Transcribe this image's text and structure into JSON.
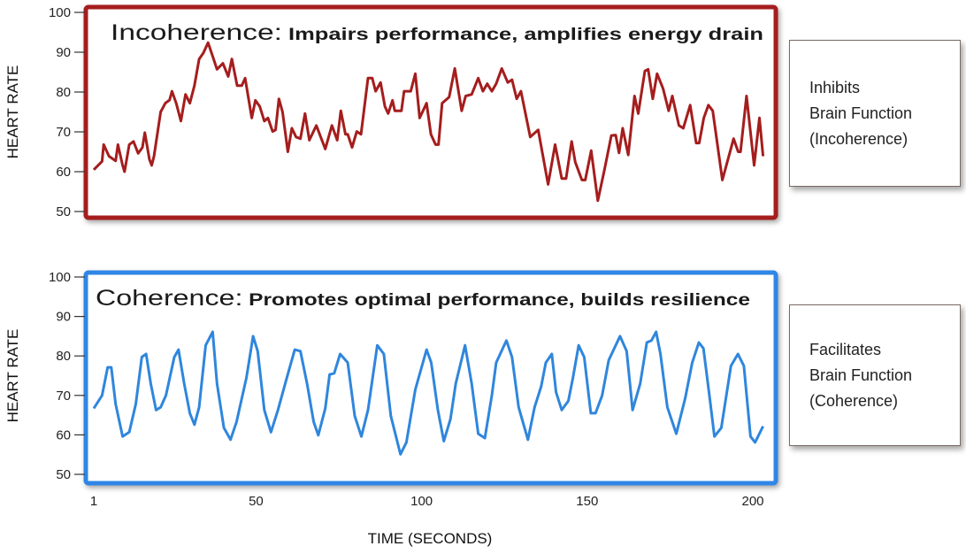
{
  "chart_data": [
    {
      "type": "line",
      "title_bold": "Incoherence:",
      "title_rest": " Impairs performance, amplifies energy drain",
      "ylabel": "HEART RATE",
      "xlabel": "",
      "ylim": [
        50,
        100
      ],
      "yticks": [
        100,
        90,
        80,
        70,
        60,
        50
      ],
      "xlim": [
        1,
        203
      ],
      "xticks": [],
      "grid": false,
      "color": "#a51d1d",
      "border_color": "#a51d1d",
      "annotation": [
        "Inhibits",
        "Brain Function",
        "(Incoherence)"
      ],
      "points": [
        [
          1,
          60.5
        ],
        [
          3.5,
          62.6
        ],
        [
          4,
          66.8
        ],
        [
          5.6,
          63.9
        ],
        [
          7.6,
          62.7
        ],
        [
          8.3,
          66.8
        ],
        [
          9.7,
          61.6
        ],
        [
          10.3,
          60
        ],
        [
          11.7,
          66.8
        ],
        [
          13,
          67.6
        ],
        [
          14.4,
          64.6
        ],
        [
          15.7,
          66.1
        ],
        [
          16.4,
          69.8
        ],
        [
          17.8,
          63.1
        ],
        [
          18.5,
          61.6
        ],
        [
          19.2,
          63.9
        ],
        [
          21.2,
          75
        ],
        [
          22.6,
          77.2
        ],
        [
          23.9,
          78
        ],
        [
          24.6,
          80.2
        ],
        [
          25.9,
          77.2
        ],
        [
          27.3,
          72.7
        ],
        [
          28.7,
          79.4
        ],
        [
          30,
          77.2
        ],
        [
          31.4,
          81.6
        ],
        [
          32.8,
          88.3
        ],
        [
          34.1,
          89.8
        ],
        [
          35.5,
          92.4
        ],
        [
          36.9,
          89
        ],
        [
          38.2,
          85.7
        ],
        [
          40,
          87.2
        ],
        [
          41.6,
          83.9
        ],
        [
          42.7,
          88.3
        ],
        [
          44.3,
          81.6
        ],
        [
          45.7,
          81.6
        ],
        [
          46.7,
          83.5
        ],
        [
          48.7,
          73.5
        ],
        [
          49.8,
          77.9
        ],
        [
          51.1,
          76.4
        ],
        [
          52.5,
          72.7
        ],
        [
          53.6,
          73.5
        ],
        [
          55,
          70.1
        ],
        [
          55.9,
          70.5
        ],
        [
          56.9,
          78.3
        ],
        [
          58,
          75
        ],
        [
          59.6,
          65
        ],
        [
          60.8,
          70.9
        ],
        [
          62.1,
          68.7
        ],
        [
          63.4,
          68.3
        ],
        [
          64.8,
          74.6
        ],
        [
          66.1,
          67.9
        ],
        [
          68.2,
          71.6
        ],
        [
          70.9,
          65.7
        ],
        [
          72.9,
          71.6
        ],
        [
          74.5,
          67.9
        ],
        [
          75.6,
          75.3
        ],
        [
          77,
          69.4
        ],
        [
          77.7,
          69.4
        ],
        [
          79,
          66.1
        ],
        [
          80.4,
          70.1
        ],
        [
          81.7,
          69.4
        ],
        [
          83.8,
          83.5
        ],
        [
          85.1,
          83.5
        ],
        [
          86.1,
          80.2
        ],
        [
          87.6,
          82.4
        ],
        [
          88.9,
          76.4
        ],
        [
          89.9,
          74.6
        ],
        [
          91.2,
          77.9
        ],
        [
          91.9,
          75.3
        ],
        [
          93.9,
          75.3
        ],
        [
          94.7,
          80.2
        ],
        [
          96.7,
          80.2
        ],
        [
          98.1,
          84.6
        ],
        [
          99.4,
          73.5
        ],
        [
          101.5,
          77.2
        ],
        [
          102.8,
          69.4
        ],
        [
          104.2,
          66.8
        ],
        [
          105.1,
          66.8
        ],
        [
          106.2,
          77.2
        ],
        [
          108.3,
          78.7
        ],
        [
          110,
          85.9
        ],
        [
          112.1,
          75.3
        ],
        [
          113.3,
          79
        ],
        [
          115.1,
          79.4
        ],
        [
          117.1,
          83.5
        ],
        [
          118.5,
          80.2
        ],
        [
          119.8,
          82.1
        ],
        [
          121.2,
          80.2
        ],
        [
          122.5,
          82.1
        ],
        [
          124.2,
          85.9
        ],
        [
          126,
          82.4
        ],
        [
          127.3,
          83.1
        ],
        [
          128.7,
          78.3
        ],
        [
          130,
          80.2
        ],
        [
          132.8,
          68.7
        ],
        [
          135.2,
          70.5
        ],
        [
          138.2,
          56.8
        ],
        [
          140.3,
          66.8
        ],
        [
          142.3,
          58.3
        ],
        [
          143.6,
          58.3
        ],
        [
          145.3,
          67.6
        ],
        [
          146.4,
          62.4
        ],
        [
          148.4,
          57.9
        ],
        [
          149.4,
          57.9
        ],
        [
          151.2,
          65.3
        ],
        [
          153.2,
          52.7
        ],
        [
          155.2,
          60.5
        ],
        [
          157.3,
          69.1
        ],
        [
          158.6,
          69.2
        ],
        [
          159.6,
          64.7
        ],
        [
          160.7,
          70.9
        ],
        [
          162.4,
          64.2
        ],
        [
          164.3,
          79
        ],
        [
          165.4,
          74.6
        ],
        [
          167.4,
          85.3
        ],
        [
          168.4,
          85.7
        ],
        [
          169.8,
          78.3
        ],
        [
          171.1,
          84.6
        ],
        [
          172.9,
          80.9
        ],
        [
          174.6,
          75.3
        ],
        [
          175.7,
          79
        ],
        [
          177.7,
          71.6
        ],
        [
          179,
          70.9
        ],
        [
          181.1,
          76.7
        ],
        [
          182.9,
          67.2
        ],
        [
          183.8,
          67.2
        ],
        [
          185.2,
          73.5
        ],
        [
          186.6,
          76.7
        ],
        [
          187.9,
          75.3
        ],
        [
          190.8,
          57.9
        ],
        [
          194.2,
          68.3
        ],
        [
          195.6,
          65
        ],
        [
          196.3,
          65
        ],
        [
          198.1,
          79
        ],
        [
          200.4,
          61.6
        ],
        [
          202,
          73.5
        ],
        [
          203.1,
          63.9
        ]
      ]
    },
    {
      "type": "line",
      "title_bold": "Coherence:",
      "title_rest": " Promotes optimal performance, builds resilience",
      "ylabel": "HEART RATE",
      "xlabel": "TIME (SECONDS)",
      "ylim": [
        50,
        100
      ],
      "yticks": [
        100,
        90,
        80,
        70,
        60,
        50
      ],
      "xlim": [
        1,
        203
      ],
      "xticks": [
        1,
        50,
        100,
        150,
        200
      ],
      "grid": false,
      "color": "#2f86dc",
      "border_color": "#2f86e6",
      "annotation": [
        "Facilitates",
        "Brain Function",
        "(Coherence)"
      ],
      "points": [
        [
          1,
          66.7
        ],
        [
          3.5,
          70
        ],
        [
          5.2,
          77.1
        ],
        [
          6.3,
          77.1
        ],
        [
          7.6,
          67.8
        ],
        [
          9.7,
          59.6
        ],
        [
          11.7,
          60.7
        ],
        [
          13.7,
          67.8
        ],
        [
          15.5,
          79.7
        ],
        [
          16.8,
          80.5
        ],
        [
          18.2,
          73
        ],
        [
          19.8,
          66.3
        ],
        [
          21.2,
          67
        ],
        [
          22.8,
          70
        ],
        [
          25.3,
          79.7
        ],
        [
          26.6,
          81.6
        ],
        [
          28.3,
          73
        ],
        [
          30,
          65.5
        ],
        [
          31.4,
          62.6
        ],
        [
          32.8,
          67
        ],
        [
          34.8,
          82.7
        ],
        [
          36.9,
          86.1
        ],
        [
          38.2,
          73
        ],
        [
          40.3,
          61.8
        ],
        [
          42.3,
          58.8
        ],
        [
          44.1,
          63.3
        ],
        [
          47.1,
          74.5
        ],
        [
          49.1,
          85
        ],
        [
          50.5,
          81.2
        ],
        [
          52.5,
          66.3
        ],
        [
          54.5,
          60.7
        ],
        [
          56.6,
          66.3
        ],
        [
          59.3,
          74.5
        ],
        [
          61.7,
          81.6
        ],
        [
          63.4,
          81.2
        ],
        [
          65.4,
          73
        ],
        [
          67.4,
          63.3
        ],
        [
          68.8,
          59.9
        ],
        [
          70.9,
          66.7
        ],
        [
          72.2,
          75.3
        ],
        [
          73.6,
          75.6
        ],
        [
          75.4,
          80.5
        ],
        [
          77.7,
          78.3
        ],
        [
          79.8,
          64.8
        ],
        [
          81.8,
          59.6
        ],
        [
          83.8,
          66.3
        ],
        [
          86.6,
          82.7
        ],
        [
          88.6,
          80.5
        ],
        [
          90.7,
          64.8
        ],
        [
          93.6,
          55.1
        ],
        [
          95.4,
          58.1
        ],
        [
          98.1,
          71.5
        ],
        [
          101.5,
          81.6
        ],
        [
          102.9,
          78.3
        ],
        [
          104.9,
          66.3
        ],
        [
          106.7,
          58.4
        ],
        [
          108.7,
          64
        ],
        [
          110.3,
          73
        ],
        [
          113.1,
          82.7
        ],
        [
          115.1,
          73
        ],
        [
          117.1,
          60.3
        ],
        [
          119.1,
          59.2
        ],
        [
          121.2,
          70
        ],
        [
          122.5,
          78.3
        ],
        [
          125.6,
          83.9
        ],
        [
          127.3,
          79.7
        ],
        [
          129.3,
          67
        ],
        [
          132.1,
          58.8
        ],
        [
          134.1,
          67
        ],
        [
          136.1,
          72.3
        ],
        [
          137.5,
          78.3
        ],
        [
          139.3,
          80.5
        ],
        [
          140.6,
          70.8
        ],
        [
          142.3,
          66.3
        ],
        [
          144.3,
          68.6
        ],
        [
          145.7,
          74.5
        ],
        [
          147.4,
          82.7
        ],
        [
          149.1,
          79.7
        ],
        [
          151.1,
          65.5
        ],
        [
          152.5,
          65.5
        ],
        [
          154.5,
          70
        ],
        [
          156.5,
          78.9
        ],
        [
          158.6,
          82.7
        ],
        [
          159.9,
          85
        ],
        [
          161.9,
          81.2
        ],
        [
          163.7,
          66.3
        ],
        [
          166,
          73
        ],
        [
          168,
          83.4
        ],
        [
          169.4,
          83.9
        ],
        [
          170.8,
          86.1
        ],
        [
          172.1,
          80.5
        ],
        [
          174.2,
          67
        ],
        [
          176.9,
          60.3
        ],
        [
          179.6,
          69.3
        ],
        [
          181.7,
          78.3
        ],
        [
          183.7,
          83.4
        ],
        [
          185.1,
          81.9
        ],
        [
          187.1,
          68.6
        ],
        [
          188.4,
          59.6
        ],
        [
          190.5,
          61.8
        ],
        [
          193.4,
          77.5
        ],
        [
          195.5,
          80.5
        ],
        [
          197.3,
          77.5
        ],
        [
          199.3,
          59.6
        ],
        [
          200.7,
          58.1
        ],
        [
          203.1,
          62.2
        ]
      ]
    }
  ]
}
